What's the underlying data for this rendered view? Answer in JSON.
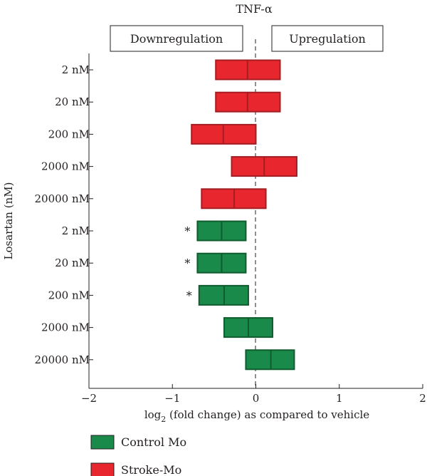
{
  "chart_data": {
    "type": "bar",
    "title": "TNF-α",
    "annotations": {
      "left": "Downregulation",
      "right": "Upregulation"
    },
    "ylabel": "Losartan (nM)",
    "xlabel_prefix": "log",
    "xlabel_sub": "2",
    "xlabel_suffix": " (fold change) as compared to vehicle",
    "xlim": [
      -2,
      2
    ],
    "xticks": [
      "−2",
      "−1",
      "0",
      "1",
      "2"
    ],
    "xtick_values": [
      -2,
      -1,
      0,
      1,
      2
    ],
    "categories": [
      "2 nM",
      "20 nM",
      "200 nM",
      "2000 nM",
      "20000 nM",
      "2 nM",
      "20 nM",
      "200 nM",
      "2000 nM",
      "20000 nM"
    ],
    "series": [
      {
        "name": "Stroke-Mo",
        "color": "#e8262d",
        "edge": "#a31e22",
        "rows": [
          {
            "low": -0.48,
            "mid": -0.1,
            "high": 0.29
          },
          {
            "low": -0.48,
            "mid": -0.1,
            "high": 0.29
          },
          {
            "low": -0.77,
            "mid": -0.39,
            "high": 0.0
          },
          {
            "low": -0.29,
            "mid": 0.1,
            "high": 0.49
          },
          {
            "low": -0.65,
            "mid": -0.26,
            "high": 0.12
          }
        ]
      },
      {
        "name": "Control Mo",
        "color": "#1a8a4a",
        "edge": "#0f5c2e",
        "rows": [
          {
            "low": -0.7,
            "mid": -0.41,
            "high": -0.12,
            "star": "*"
          },
          {
            "low": -0.7,
            "mid": -0.41,
            "high": -0.12,
            "star": "*"
          },
          {
            "low": -0.68,
            "mid": -0.38,
            "high": -0.09,
            "star": "*"
          },
          {
            "low": -0.38,
            "mid": -0.09,
            "high": 0.2
          },
          {
            "low": -0.12,
            "mid": 0.18,
            "high": 0.46
          }
        ]
      }
    ],
    "legend": [
      {
        "name": "Control Mo",
        "color": "#1a8a4a"
      },
      {
        "name": "Stroke-Mo",
        "color": "#e8262d"
      }
    ]
  }
}
